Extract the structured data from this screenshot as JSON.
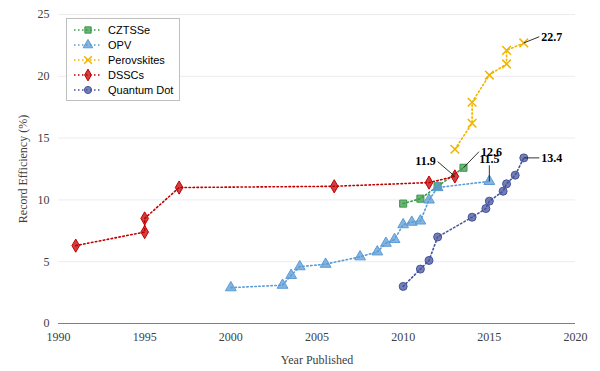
{
  "chart_data": {
    "type": "line",
    "x_label": "Year Published",
    "y_label": "Record Efficiency (%)",
    "xlim": [
      1990,
      2020
    ],
    "xticks": [
      1990,
      1995,
      2000,
      2005,
      2010,
      2015,
      2020
    ],
    "ylim": [
      0,
      25
    ],
    "yticks": [
      0,
      5,
      10,
      15,
      20,
      25
    ],
    "grid": true,
    "legend": "top-left",
    "line_style": "dotted",
    "series": [
      {
        "name": "CZTSSe",
        "color": "#3a9a4a",
        "marker": "square",
        "x": [
          2010,
          2011,
          2012,
          2013.5
        ],
        "values": [
          9.7,
          10.1,
          11.1,
          12.6
        ]
      },
      {
        "name": "OPV",
        "color": "#5b9bd5",
        "marker": "triangle",
        "x": [
          2000,
          2003,
          2003.5,
          2004,
          2005.5,
          2007.5,
          2008.5,
          2009,
          2009.5,
          2010,
          2010.5,
          2011,
          2011.5,
          2012,
          2015
        ],
        "values": [
          2.9,
          3.1,
          3.9,
          4.6,
          4.8,
          5.4,
          5.8,
          6.5,
          6.8,
          8.0,
          8.2,
          8.3,
          10.0,
          11.0,
          11.5
        ]
      },
      {
        "name": "Perovskites",
        "color": "#f0b400",
        "marker": "x",
        "x": [
          2013,
          2014,
          2014,
          2015,
          2016,
          2016,
          2017
        ],
        "values": [
          14.1,
          16.2,
          17.9,
          20.1,
          21.0,
          22.1,
          22.7
        ]
      },
      {
        "name": "DSSCs",
        "color": "#c00000",
        "marker": "diamond",
        "x": [
          1991,
          1995,
          1995,
          1997,
          2006,
          2011.5,
          2013
        ],
        "values": [
          6.3,
          7.4,
          8.5,
          11.0,
          11.1,
          11.4,
          11.9
        ]
      },
      {
        "name": "Quantum Dot",
        "color": "#44549c",
        "marker": "circle",
        "x": [
          2010,
          2011,
          2011.5,
          2012,
          2014,
          2014.8,
          2015,
          2015.8,
          2016,
          2016.5,
          2017
        ],
        "values": [
          3.0,
          4.4,
          5.1,
          7.0,
          8.6,
          9.3,
          9.9,
          10.7,
          11.3,
          12.0,
          13.4
        ]
      }
    ],
    "annotations": [
      {
        "text": "22.7",
        "x": 2017,
        "y": 22.7
      },
      {
        "text": "12.6",
        "x": 2013.5,
        "y": 12.6
      },
      {
        "text": "11.9",
        "x": 2013,
        "y": 11.9
      },
      {
        "text": "11.5",
        "x": 2015,
        "y": 11.5
      },
      {
        "text": "13.4",
        "x": 2017,
        "y": 13.4
      }
    ]
  }
}
